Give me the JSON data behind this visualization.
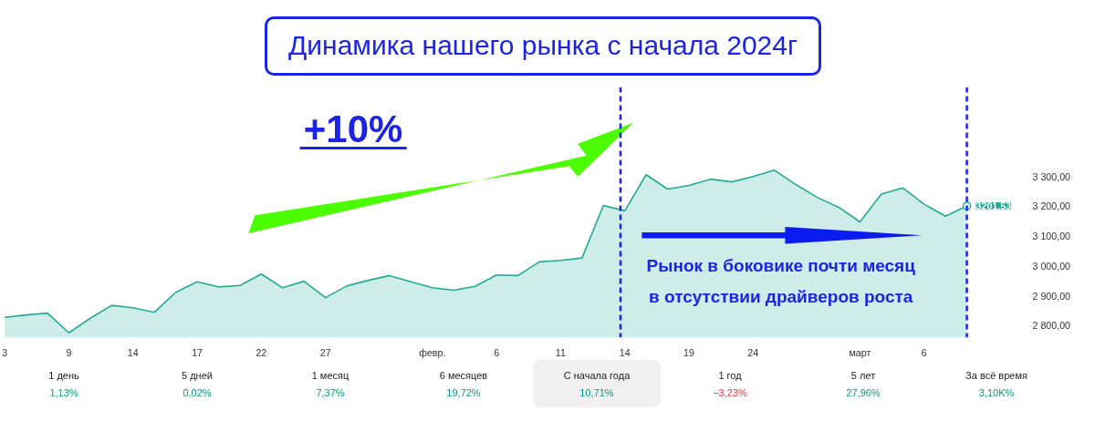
{
  "chart_data": {
    "type": "area",
    "title": "Динамика нашего рынка с начала 2024г",
    "categories": [
      "3",
      null,
      null,
      "9",
      null,
      null,
      "14",
      null,
      null,
      "17",
      null,
      null,
      "22",
      null,
      null,
      "27",
      null,
      null,
      null,
      null,
      "февр.",
      null,
      null,
      "6",
      null,
      null,
      "11",
      null,
      null,
      "14",
      null,
      null,
      "19",
      null,
      null,
      "24",
      null,
      null,
      null,
      null,
      "март",
      null,
      null,
      "6",
      null,
      null
    ],
    "series": [
      {
        "color": "#22ab94",
        "values": [
          2828,
          2836,
          2842,
          2776,
          2825,
          2868,
          2860,
          2845,
          2912,
          2947,
          2930,
          2935,
          2973,
          2927,
          2949,
          2894,
          2933,
          2952,
          2968,
          2947,
          2927,
          2919,
          2932,
          2970,
          2968,
          3014,
          3019,
          3027,
          3203,
          3185,
          3306,
          3258,
          3270,
          3291,
          3282,
          3300,
          3321,
          3273,
          3230,
          3197,
          3148,
          3241,
          3262,
          3207,
          3167,
          3201.53
        ]
      }
    ],
    "ylim": [
      2760,
      3600
    ],
    "yticks": [
      {
        "value": 2800,
        "label": "2 800,00"
      },
      {
        "value": 2900,
        "label": "2 900,00"
      },
      {
        "value": 3000,
        "label": "3 000,00"
      },
      {
        "value": 3100,
        "label": "3 100,00"
      },
      {
        "value": 3200,
        "label": "3 200,00"
      },
      {
        "value": 3300,
        "label": "3 300,00"
      }
    ],
    "annotations": [
      "+10%",
      "Рынок в боковике почти месяц\nв отсутствии драйверов роста",
      "3201,53",
      "1 день",
      "1,13%",
      "5 дней",
      "0,02%",
      "1 месяц",
      "7,37%",
      "6 месяцев",
      "19,72%",
      "С начала года",
      "10,71%",
      "1 год",
      "−3,23%",
      "5 лет",
      "27,96%",
      "За всё время",
      "3,10K%"
    ]
  }
}
